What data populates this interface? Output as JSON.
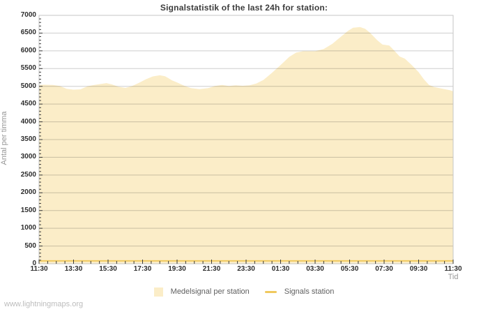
{
  "page": {
    "watermark": "www.lightningmaps.org"
  },
  "chart": {
    "title": "Signalstatistik of the last 24h for station:",
    "xlabel": "Tid",
    "ylabel": "Antal per timma"
  },
  "legend": {
    "items": [
      {
        "label": "Medelsignal per station",
        "swatch": "area",
        "color": "#FBEDC8"
      },
      {
        "label": "Signals station",
        "swatch": "line",
        "color": "#F0C95E"
      }
    ]
  },
  "colors": {
    "area_fill": "#FBEDC8",
    "signals_line": "#F0C95E",
    "gridline": "#CDCDCD",
    "plot_border": "#C6C6C6",
    "tick_mark": "#3a3a3a",
    "tick_label": "#2e2e2e",
    "title_text": "#3c3c3c",
    "axis_title_text": "#979797",
    "legend_text": "#5f5f5f",
    "watermark_text": "#bcbcbc",
    "background": "#FFFFFF"
  },
  "chart_data": {
    "type": "area",
    "title": "Signalstatistik of the last 24h for station:",
    "xlabel": "Tid",
    "ylabel": "Antal per timma",
    "ylim": [
      0,
      7000
    ],
    "y_tick_step": 500,
    "y_minor_step": 100,
    "x_hours_range": [
      0,
      24
    ],
    "x_major_step_hours": 2,
    "x_minor_step_hours": 0.5,
    "grid": true,
    "legend_position": "bottom",
    "x_tick_labels": [
      "11:30",
      "13:30",
      "15:30",
      "17:30",
      "19:30",
      "21:30",
      "23:30",
      "01:30",
      "03:30",
      "05:30",
      "07:30",
      "09:30",
      "11:30"
    ],
    "y_tick_labels": [
      "0",
      "500",
      "1000",
      "1500",
      "2000",
      "2500",
      "3000",
      "3500",
      "4000",
      "4500",
      "5000",
      "5500",
      "6000",
      "6500",
      "7000"
    ],
    "series": [
      {
        "name": "Medelsignal per station",
        "type": "area",
        "color": "#FBEDC8",
        "points": [
          [
            0.0,
            5040
          ],
          [
            0.3,
            5045
          ],
          [
            0.8,
            5040
          ],
          [
            1.2,
            5010
          ],
          [
            1.6,
            4930
          ],
          [
            2.0,
            4905
          ],
          [
            2.4,
            4915
          ],
          [
            2.8,
            5000
          ],
          [
            3.2,
            5040
          ],
          [
            3.6,
            5070
          ],
          [
            3.9,
            5090
          ],
          [
            4.2,
            5060
          ],
          [
            4.6,
            4990
          ],
          [
            5.0,
            4955
          ],
          [
            5.4,
            5010
          ],
          [
            5.8,
            5100
          ],
          [
            6.2,
            5200
          ],
          [
            6.6,
            5280
          ],
          [
            7.0,
            5310
          ],
          [
            7.3,
            5285
          ],
          [
            7.5,
            5230
          ],
          [
            7.7,
            5170
          ],
          [
            8.0,
            5110
          ],
          [
            8.4,
            5020
          ],
          [
            8.8,
            4950
          ],
          [
            9.3,
            4920
          ],
          [
            9.8,
            4950
          ],
          [
            10.2,
            5010
          ],
          [
            10.6,
            5040
          ],
          [
            11.0,
            5010
          ],
          [
            11.4,
            5030
          ],
          [
            11.8,
            5015
          ],
          [
            12.2,
            5030
          ],
          [
            12.6,
            5080
          ],
          [
            13.0,
            5180
          ],
          [
            13.5,
            5380
          ],
          [
            14.0,
            5600
          ],
          [
            14.5,
            5830
          ],
          [
            14.9,
            5950
          ],
          [
            15.3,
            5990
          ],
          [
            16.0,
            5990
          ],
          [
            16.5,
            6050
          ],
          [
            17.0,
            6200
          ],
          [
            17.5,
            6400
          ],
          [
            17.9,
            6560
          ],
          [
            18.2,
            6650
          ],
          [
            18.6,
            6670
          ],
          [
            18.9,
            6620
          ],
          [
            19.2,
            6500
          ],
          [
            19.6,
            6300
          ],
          [
            19.9,
            6180
          ],
          [
            20.3,
            6150
          ],
          [
            20.6,
            6000
          ],
          [
            20.9,
            5840
          ],
          [
            21.2,
            5780
          ],
          [
            21.6,
            5600
          ],
          [
            22.0,
            5400
          ],
          [
            22.3,
            5200
          ],
          [
            22.6,
            5040
          ],
          [
            22.9,
            4980
          ],
          [
            23.4,
            4930
          ],
          [
            23.8,
            4890
          ],
          [
            24.0,
            4860
          ]
        ]
      },
      {
        "name": "Signals station",
        "type": "line",
        "color": "#F0C95E",
        "points": [
          [
            0.0,
            80
          ],
          [
            24.0,
            80
          ]
        ]
      }
    ]
  }
}
